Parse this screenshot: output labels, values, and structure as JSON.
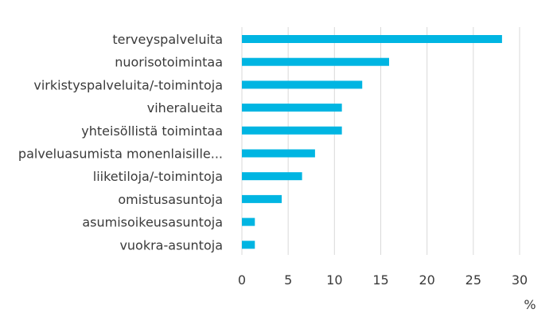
{
  "chart_data": {
    "type": "bar",
    "orientation": "horizontal",
    "categories": [
      "terveyspalveluita",
      "nuorisotoimintaa",
      "virkistyspalveluita/-toimintoja",
      "viheralueita",
      "yhteisöllistä toimintaa",
      "palveluasumista monenlaisille...",
      "liiketiloja/-toimintoja",
      "omistusasuntoja",
      "asumisoikeusasuntoja",
      "vuokra-asuntoja"
    ],
    "values": [
      28.1,
      15.9,
      13.0,
      10.8,
      10.8,
      7.9,
      6.5,
      4.3,
      1.4,
      1.4
    ],
    "xlim": [
      0,
      30
    ],
    "xticks": [
      0,
      5,
      10,
      15,
      20,
      25,
      30
    ],
    "xticklabels": [
      "0",
      "5",
      "10",
      "15",
      "20",
      "25",
      "30"
    ],
    "xunit": "%",
    "grid": "vertical",
    "bar_color": "#00b5e2",
    "grid_color": "#d9d9d9",
    "text_color": "#3a3a3a"
  }
}
